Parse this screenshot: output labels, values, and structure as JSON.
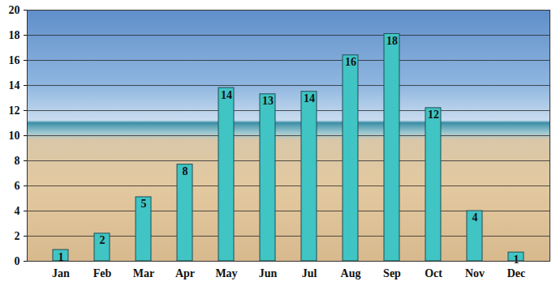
{
  "chart_data": {
    "type": "bar",
    "categories": [
      "Jan",
      "Feb",
      "Mar",
      "Apr",
      "May",
      "Jun",
      "Jul",
      "Aug",
      "Sep",
      "Oct",
      "Nov",
      "Dec"
    ],
    "values": [
      0.9,
      2.2,
      5.1,
      7.7,
      13.8,
      13.3,
      13.5,
      16.4,
      18.1,
      12.2,
      4,
      0.7
    ],
    "value_labels": [
      "1",
      "2",
      "5",
      "8",
      "14",
      "13",
      "14",
      "16",
      "18",
      "12",
      "4",
      "1"
    ],
    "color": "#40c4c4",
    "ylim": [
      0,
      20
    ],
    "yticks": [
      0,
      2,
      4,
      6,
      8,
      10,
      12,
      14,
      16,
      18,
      20
    ],
    "grid": true,
    "data_labels": true
  }
}
